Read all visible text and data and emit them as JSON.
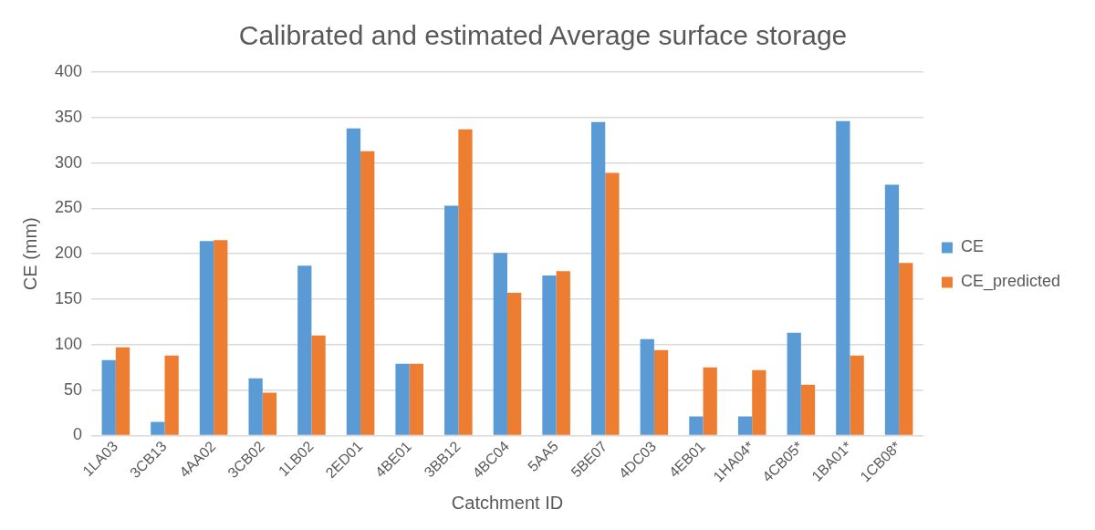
{
  "chart_data": {
    "type": "bar",
    "title": "Calibrated and estimated Average surface storage",
    "xlabel": "Catchment ID",
    "ylabel": "CE (mm)",
    "categories": [
      "1LA03",
      "3CB13",
      "4AA02",
      "3CB02",
      "1LB02",
      "2ED01",
      "4BE01",
      "3BB12",
      "4BC04",
      "5AA5",
      "5BE07",
      "4DC03",
      "4EB01",
      "1HA04*",
      "4CB05*",
      "1BA01*",
      "1CB08*"
    ],
    "series": [
      {
        "name": "CE",
        "color": "#5b9bd5",
        "values": [
          83,
          15,
          214,
          63,
          187,
          338,
          79,
          253,
          201,
          176,
          345,
          106,
          21,
          21,
          113,
          346,
          276
        ]
      },
      {
        "name": "CE_predicted",
        "color": "#ed7d31",
        "values": [
          97,
          88,
          215,
          47,
          110,
          313,
          79,
          337,
          157,
          181,
          289,
          94,
          75,
          72,
          56,
          88,
          190
        ]
      }
    ],
    "ylim": [
      0,
      400
    ],
    "yticks": [
      0,
      50,
      100,
      150,
      200,
      250,
      300,
      350,
      400
    ],
    "grid": "y",
    "legend": "right"
  }
}
